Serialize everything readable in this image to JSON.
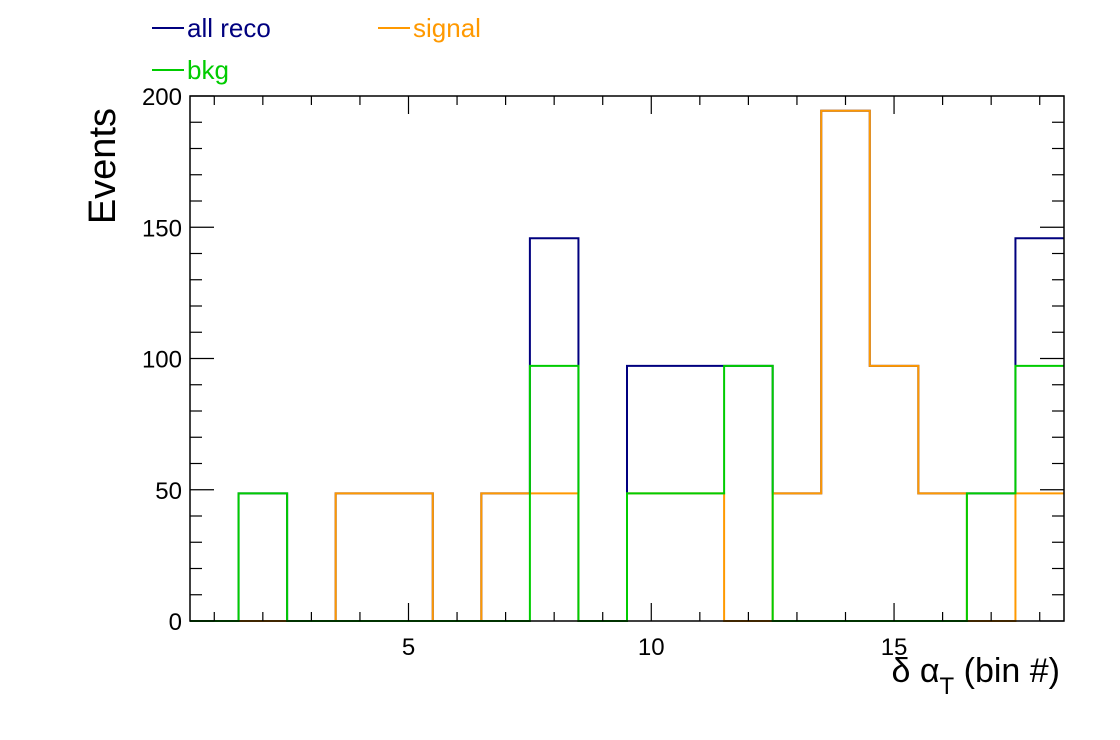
{
  "chart_data": {
    "type": "step-histogram",
    "title": "",
    "xlabel": "δ α_T (bin #)",
    "xlabel_parts": {
      "main": "δ α",
      "sub": "T",
      "suffix": " (bin #)"
    },
    "ylabel": "Events",
    "xlim": [
      0.5,
      18.5
    ],
    "ylim": [
      0,
      200
    ],
    "x_ticks": [
      5,
      10,
      15
    ],
    "y_ticks": [
      0,
      50,
      100,
      150,
      200
    ],
    "bin_edges": [
      0.5,
      1.5,
      2.5,
      3.5,
      4.5,
      5.5,
      6.5,
      7.5,
      8.5,
      9.5,
      10.5,
      11.5,
      12.5,
      13.5,
      14.5,
      15.5,
      16.5,
      17.5,
      18.5
    ],
    "series": [
      {
        "name": "all reco",
        "color": "#00007f",
        "values": [
          0,
          48.6,
          0,
          48.6,
          48.6,
          0,
          48.6,
          145.8,
          0,
          97.2,
          97.2,
          97.2,
          48.6,
          194.4,
          97.2,
          48.6,
          48.6,
          145.8
        ]
      },
      {
        "name": "signal",
        "color": "#ff9900",
        "values": [
          0,
          0,
          0,
          48.6,
          48.6,
          0,
          48.6,
          48.6,
          0,
          48.6,
          48.6,
          0,
          48.6,
          194.4,
          97.2,
          48.6,
          0,
          48.6
        ]
      },
      {
        "name": "bkg",
        "color": "#00cc00",
        "values": [
          0,
          48.6,
          0,
          0,
          0,
          0,
          0,
          97.2,
          0,
          48.6,
          48.6,
          97.2,
          0,
          0,
          0,
          0,
          48.6,
          97.2
        ]
      }
    ],
    "legend": {
      "placement": "top-left-above-plot",
      "columns": 2,
      "order": [
        "all reco",
        "signal",
        "bkg"
      ]
    },
    "grid": false
  }
}
